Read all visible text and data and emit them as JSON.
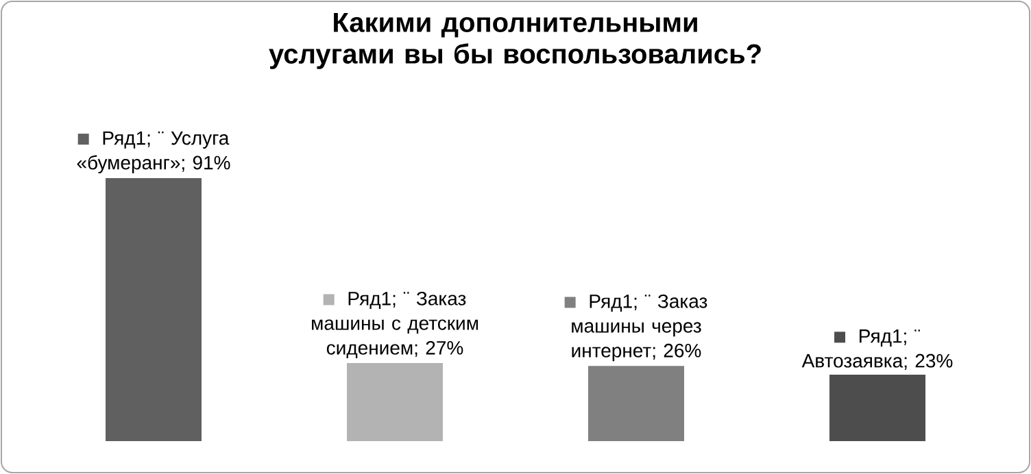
{
  "chart_data": {
    "type": "bar",
    "title": "Какими дополнительными услугами вы бы воспользовались?",
    "categories": [
      null,
      null,
      null,
      null
    ],
    "values": [
      91,
      27,
      26,
      23
    ],
    "colors": [
      "#606060",
      "#b3b3b3",
      "#808080",
      "#4d4d4d"
    ],
    "value_labels": [
      "Ряд1; ¨ Услуга «бумеранг»; 91%",
      "Ряд1; ¨ Заказ машины с детским сидением; 27%",
      "Ряд1; ¨ Заказ машины через интернет; 26%",
      "Ряд1; ¨ Автозаявка; 23%"
    ]
  }
}
